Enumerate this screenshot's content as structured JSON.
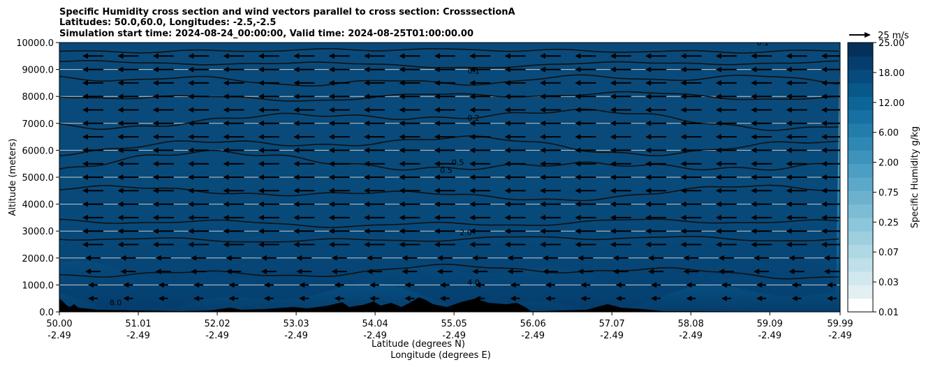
{
  "chart_data": {
    "type": "contour-cross-section",
    "title_lines": [
      "Specific Humidity cross section and wind vectors parallel to cross section: CrosssectionA",
      "Latitudes: 50.0,60.0, Longitudes: -2.5,-2.5",
      "Simulation start time: 2024-08-24_00:00:00, Valid time: 2024-08-25T01:00:00.00"
    ],
    "ylabel": "Altitude (meters)",
    "xlabel_lines": [
      "Latitude (degrees N)",
      "Longitude (degrees E)"
    ],
    "xlim": [
      50.0,
      59.99
    ],
    "ylim": [
      0,
      10000
    ],
    "x_ticks": [
      {
        "lat": "50.00",
        "lon": "-2.49"
      },
      {
        "lat": "51.01",
        "lon": "-2.49"
      },
      {
        "lat": "52.02",
        "lon": "-2.49"
      },
      {
        "lat": "53.03",
        "lon": "-2.49"
      },
      {
        "lat": "54.04",
        "lon": "-2.49"
      },
      {
        "lat": "55.05",
        "lon": "-2.49"
      },
      {
        "lat": "56.06",
        "lon": "-2.49"
      },
      {
        "lat": "57.07",
        "lon": "-2.49"
      },
      {
        "lat": "58.08",
        "lon": "-2.49"
      },
      {
        "lat": "59.09",
        "lon": "-2.49"
      },
      {
        "lat": "59.99",
        "lon": "-2.49"
      }
    ],
    "y_ticks": [
      "0.0",
      "1000.0",
      "2000.0",
      "3000.0",
      "4000.0",
      "5000.0",
      "6000.0",
      "7000.0",
      "8000.0",
      "9000.0",
      "10000.0"
    ],
    "y_tick_values": [
      0,
      1000,
      2000,
      3000,
      4000,
      5000,
      6000,
      7000,
      8000,
      9000,
      10000
    ],
    "horizontal_grid": true,
    "colorbar": {
      "label": "Specific Humidity g/kg",
      "tick_labels": [
        "0.01",
        "0.03",
        "0.07",
        "0.25",
        "0.75",
        "2.00",
        "6.00",
        "12.00",
        "18.00",
        "25.00"
      ],
      "levels": 20,
      "colors": [
        "#ffffff",
        "#e2f0f2",
        "#d0e8ee",
        "#bfe0ea",
        "#aed8e4",
        "#9dcfdf",
        "#8cc6da",
        "#7cbcd4",
        "#6cb2cf",
        "#5ca8c9",
        "#4c9ec3",
        "#3d93bc",
        "#2f88b4",
        "#227dab",
        "#1671a2",
        "#0d6597",
        "#08588a",
        "#064b7c",
        "#053d6c",
        "#05305b",
        "#03224a"
      ]
    },
    "wind_key": {
      "label": "25 m/s",
      "speed": 25
    },
    "wind_vectors": {
      "direction": "toward-south",
      "rows_m": [
        500,
        1000,
        1500,
        2000,
        2500,
        3000,
        3500,
        4000,
        4500,
        5000,
        5500,
        6000,
        6500,
        7000,
        7500,
        8000,
        8500,
        9000,
        9500
      ],
      "columns": 22
    },
    "contours": [
      {
        "level": "0.1",
        "label_lat": 55.3,
        "label_alt": 8850
      },
      {
        "level": "0.2",
        "label_lat": 55.3,
        "label_alt": 7100
      },
      {
        "level": "0.5",
        "label_lat": 54.95,
        "label_alt": 5150
      },
      {
        "level": "0.5",
        "label_lat": 55.1,
        "label_alt": 5450
      },
      {
        "level": "2.0",
        "label_lat": 55.2,
        "label_alt": 2850
      },
      {
        "level": "4.0",
        "label_lat": 55.3,
        "label_alt": 1000
      },
      {
        "level": "8.0",
        "label_lat": 50.72,
        "label_alt": 250
      },
      {
        "level": "0.1",
        "label_lat": 59.0,
        "label_alt": 9900
      }
    ]
  }
}
